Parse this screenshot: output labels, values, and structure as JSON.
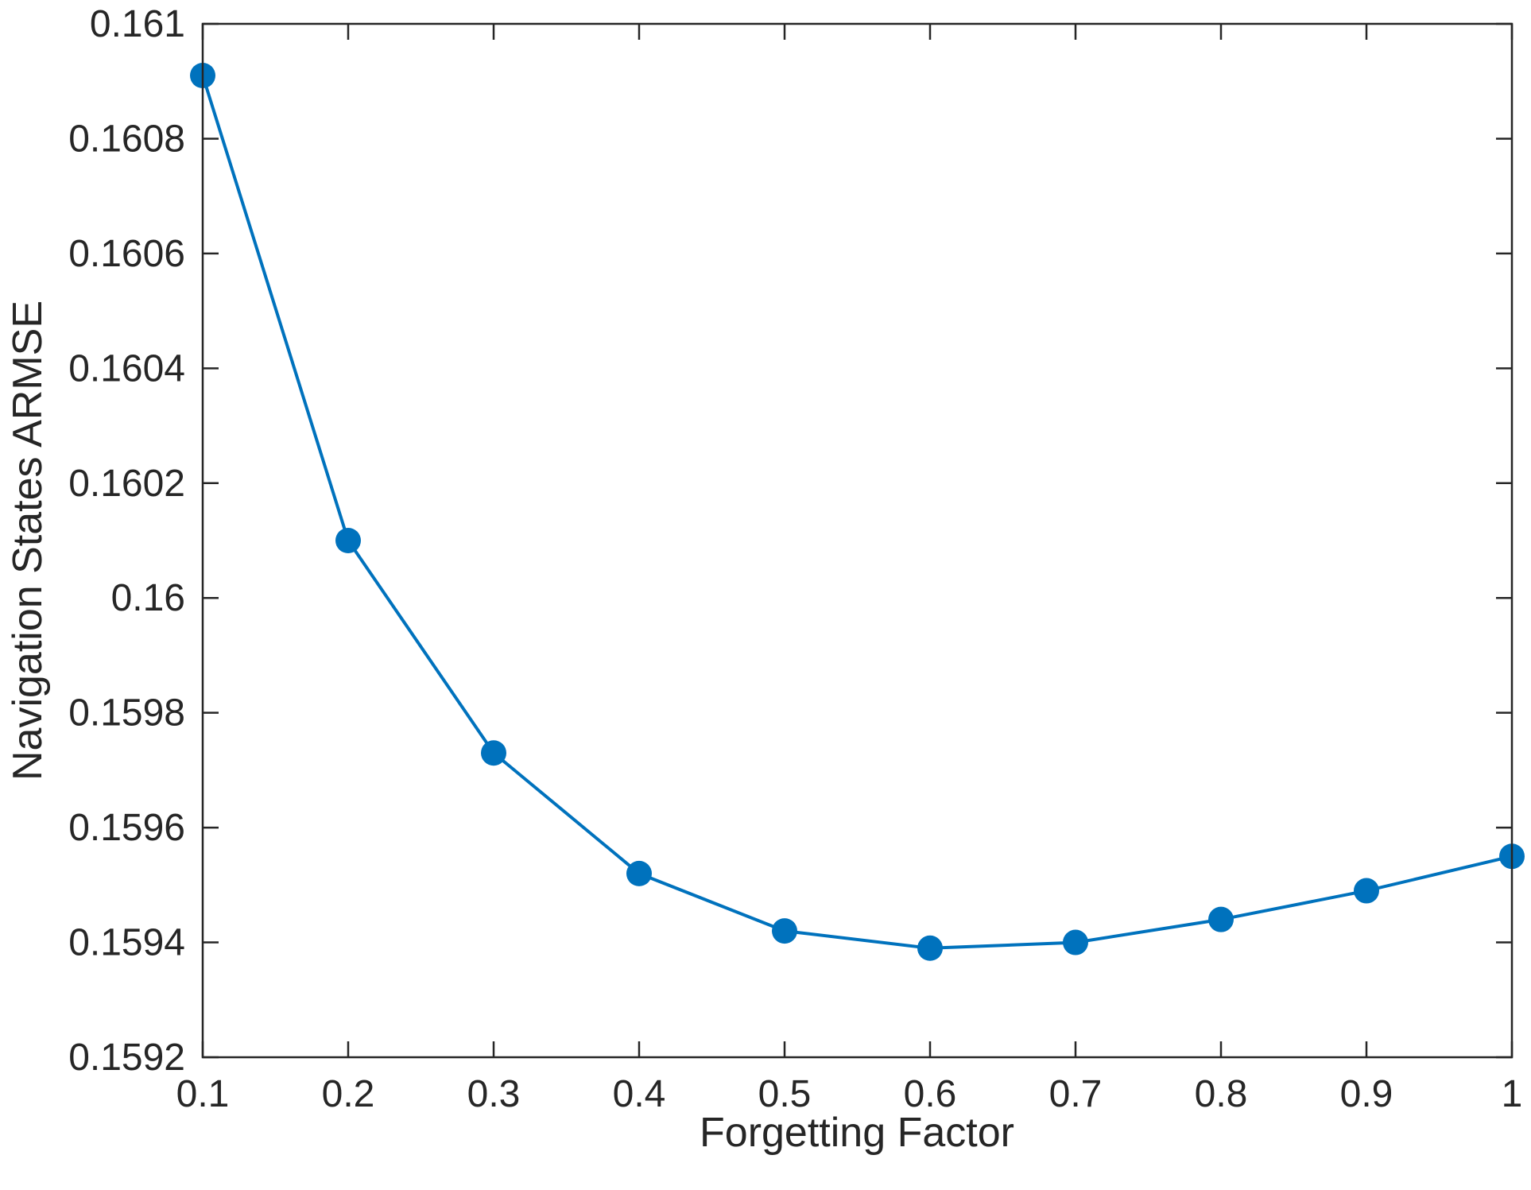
{
  "chart_data": {
    "type": "line",
    "title": "",
    "xlabel": "Forgetting Factor",
    "ylabel": "Navigation States ARMSE",
    "xlim": [
      0.1,
      1
    ],
    "ylim": [
      0.1592,
      0.161
    ],
    "xticks": [
      "0.1",
      "0.2",
      "0.3",
      "0.4",
      "0.5",
      "0.6",
      "0.7",
      "0.8",
      "0.9",
      "1"
    ],
    "yticks": [
      "0.1592",
      "0.1594",
      "0.1596",
      "0.1598",
      "0.16",
      "0.1602",
      "0.1604",
      "0.1606",
      "0.1608",
      "0.161"
    ],
    "grid": false,
    "legend": "none",
    "series": [
      {
        "color": "#0072BD",
        "marker": "filled-circle",
        "x": [
          0.1,
          0.2,
          0.3,
          0.4,
          0.5,
          0.6,
          0.7,
          0.8,
          0.9,
          1.0
        ],
        "y": [
          0.16091,
          0.1601,
          0.15973,
          0.15952,
          0.15942,
          0.15939,
          0.1594,
          0.15944,
          0.15949,
          0.15955
        ]
      }
    ]
  }
}
